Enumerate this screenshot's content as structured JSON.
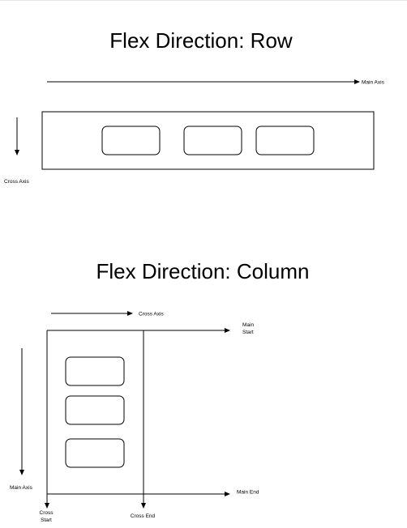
{
  "row_diagram": {
    "title": "Flex Direction: Row",
    "main_axis_label": "Main Axis",
    "cross_axis_label": "Cross Axis"
  },
  "column_diagram": {
    "title": "Flex Direction: Column",
    "cross_axis_label": "Cross Axis",
    "main_start_label": [
      "Main",
      "Start"
    ],
    "main_end_label": "Main End",
    "main_axis_label": "Main Axis",
    "cross_start_label": [
      "Cross",
      "Start"
    ],
    "cross_end_label": "Cross End"
  },
  "colors": {
    "stroke": "#000000",
    "background": "#ffffff"
  }
}
